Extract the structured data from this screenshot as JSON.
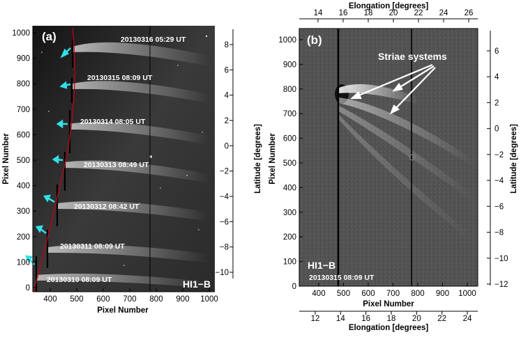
{
  "panel_a": {
    "label": "(a)",
    "instrument": "HI1−B",
    "y_axis_title": "Pixel Number",
    "x_axis_title": "Pixel Number",
    "right_axis_title": "Latitude [degrees]",
    "x_ticks": [
      "400",
      "500",
      "600",
      "700",
      "800",
      "900",
      "1000"
    ],
    "y_ticks": [
      "0",
      "100",
      "200",
      "300",
      "400",
      "500",
      "600",
      "700",
      "800",
      "900",
      "1000"
    ],
    "lat_ticks": [
      "8",
      "6",
      "4",
      "2",
      "0",
      "−2",
      "−4",
      "−6",
      "−8",
      "−10"
    ],
    "dates": [
      "20130316 05:29 UT",
      "20130315 08:09 UT",
      "20130314 08:05 UT",
      "20130313 08:49 UT",
      "20130312 08:42 UT",
      "20130311 08:09 UT",
      "20130310 08:09 UT"
    ]
  },
  "panel_b": {
    "label": "(b)",
    "instrument": "HI1−B",
    "date": "20130315  08:09 UT",
    "annotation": "Striae systems",
    "y_axis_title": "Pixel Number",
    "x_axis_title": "Pixel Number",
    "top_axis_title": "Elongation [degrees]",
    "bottom_axis_title": "Elongation [degrees]",
    "right_axis_title": "Latitude [degrees]",
    "x_ticks": [
      "400",
      "500",
      "600",
      "700",
      "800",
      "900",
      "1000"
    ],
    "y_ticks": [
      "0",
      "100",
      "200",
      "300",
      "400",
      "500",
      "600",
      "700",
      "800",
      "900",
      "1000"
    ],
    "top_ticks": [
      "14",
      "16",
      "18",
      "20",
      "22",
      "24",
      "26"
    ],
    "bottom_ticks": [
      "12",
      "14",
      "16",
      "18",
      "20",
      "22",
      "24"
    ],
    "lat_ticks": [
      "6",
      "4",
      "2",
      "0",
      "−2",
      "−4",
      "−6",
      "−8",
      "−10",
      "−12"
    ]
  },
  "colors": {
    "track_line": "#c0001a",
    "arrows_cyan": "#33e0e8",
    "striae_arrows": "#ffffff"
  }
}
